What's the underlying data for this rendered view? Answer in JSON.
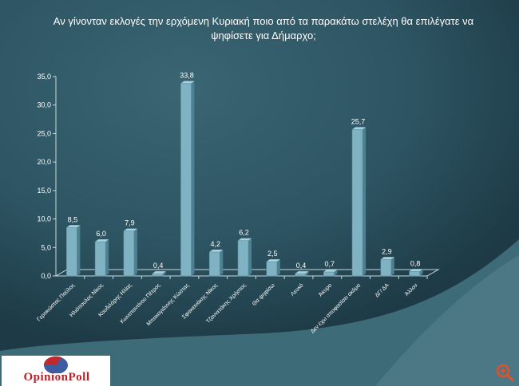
{
  "chart_data": {
    "type": "bar",
    "title": "Αν γίνονταν εκλογές την ερχόμενη Κυριακή ποιο από τα παρακάτω στελέχη θα επιλέγατε να ψηφίσετε για Δήμαρχο;",
    "categories": [
      "Γεροκώστας Παύλος",
      "Ηλιόπουλος Νίκος",
      "Κουδιλάρης Ηλίας",
      "Κωνσταντίνου Πέτρος",
      "Μπακογιάννης Κώστας",
      "Σφακιανάκης Νίκος",
      "Τζαννετάκης Χρήστος",
      "Θα ψηφίσω",
      "Λευκό",
      "Άκυρο",
      "Δεν έχω αποφασίσει ακόμα",
      "ΔΓ/ ΔΑ",
      "Άλλον"
    ],
    "values": [
      8.5,
      6.0,
      7.9,
      0.4,
      33.8,
      4.2,
      6.2,
      2.5,
      0.4,
      0.7,
      25.7,
      2.9,
      0.8
    ],
    "value_labels": [
      "8,5",
      "6,0",
      "7,9",
      "0,4",
      "33,8",
      "4,2",
      "6,2",
      "2,5",
      "0,4",
      "0,7",
      "25,7",
      "2,9",
      "0,8"
    ],
    "y_ticks": [
      "0,0",
      "5,0",
      "10,0",
      "15,0",
      "20,0",
      "25,0",
      "30,0",
      "35,0"
    ],
    "ylim": [
      0,
      35
    ],
    "xlabel": "",
    "ylabel": "",
    "grid": false,
    "legend": "none"
  },
  "logo": {
    "text": "OpinionPoll"
  },
  "colors": {
    "bar": "#7fb3c4",
    "bar_side": "#4d8090",
    "bar_top": "#a9d2df",
    "text": "#ffffff"
  },
  "icons": {
    "zoom": "zoom-in-icon"
  }
}
